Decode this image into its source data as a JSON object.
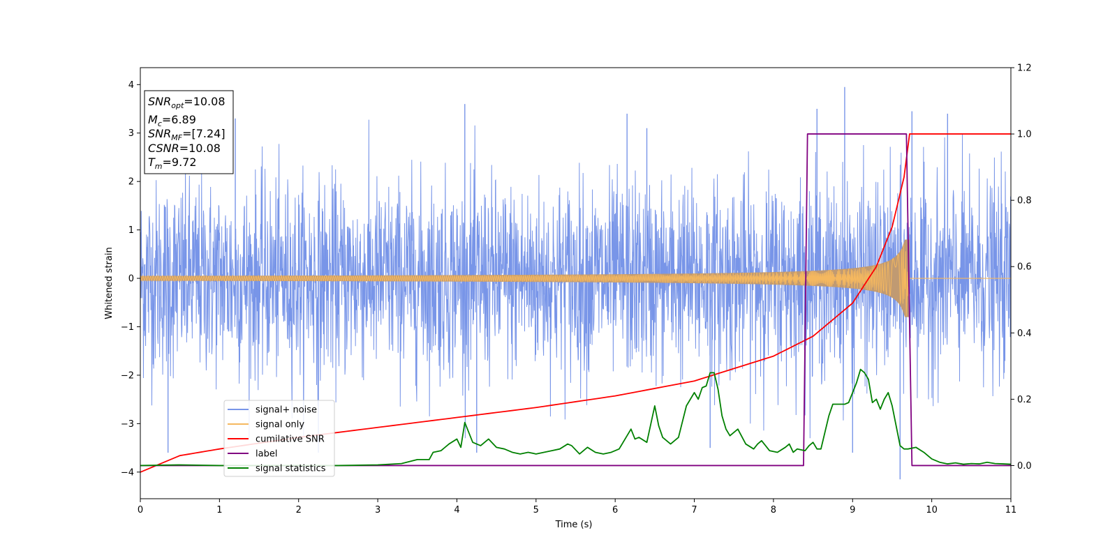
{
  "chart_data": {
    "type": "line",
    "xlabel": "Time (s)",
    "ylabel": "Whitened strain",
    "xlim": [
      0,
      11
    ],
    "ylim": [
      -4.55,
      4.35
    ],
    "ylim_right": [
      -0.1,
      1.2
    ],
    "xticks": [
      "0",
      "1",
      "2",
      "3",
      "4",
      "5",
      "6",
      "7",
      "8",
      "9",
      "10",
      "11"
    ],
    "yticks": [
      "4",
      "3",
      "2",
      "1",
      "0",
      "−1",
      "−2",
      "−3",
      "−4"
    ],
    "yticks_right": [
      "1.2",
      "1.0",
      "0.8",
      "0.6",
      "0.4",
      "0.2",
      "0.0"
    ],
    "grid": false,
    "legend_position": "lower-left",
    "annotation": {
      "lines": [
        {
          "main": "SNR",
          "sub": "opt",
          "value": "=10.08"
        },
        {
          "main": "M",
          "sub": "c",
          "value": "=6.89"
        },
        {
          "main": "SNR",
          "sub": "MF",
          "value": "=[7.24]"
        },
        {
          "main": "CSNR",
          "sub": "",
          "value": "=10.08"
        },
        {
          "main": "T",
          "sub": "m",
          "value": "=9.72"
        }
      ]
    },
    "series": [
      {
        "name": "signal+ noise",
        "axis": "left",
        "color": "#7895e8",
        "kind": "noise",
        "noise_sigma": 1.0,
        "spike_peaks": [
          [
            0.35,
            -3.6
          ],
          [
            1.2,
            3.3
          ],
          [
            2.25,
            -3.6
          ],
          [
            4.1,
            3.6
          ],
          [
            4.25,
            -3.6
          ],
          [
            6.15,
            3.4
          ],
          [
            6.4,
            3.1
          ],
          [
            7.2,
            -3.5
          ],
          [
            8.55,
            3.5
          ],
          [
            8.9,
            3.95
          ],
          [
            9.0,
            -3.6
          ],
          [
            9.6,
            -4.15
          ],
          [
            9.75,
            3.45
          ],
          [
            10.2,
            3.4
          ]
        ]
      },
      {
        "name": "signal only",
        "axis": "left",
        "color": "#f5b85f",
        "fill": "#c09a72",
        "kind": "chirp",
        "merger_time": 9.72,
        "end_time": 9.72,
        "amplitude_start": 0.05,
        "amplitude_peak": 0.8
      },
      {
        "name": "cumilative SNR",
        "axis": "right",
        "color": "#ff0000",
        "kind": "cumulative",
        "x": [
          0,
          0.5,
          1,
          2,
          3,
          4,
          5,
          6,
          7,
          8,
          8.5,
          9,
          9.3,
          9.5,
          9.65,
          9.72,
          11
        ],
        "y": [
          -0.02,
          0.03,
          0.05,
          0.085,
          0.115,
          0.145,
          0.175,
          0.21,
          0.255,
          0.33,
          0.39,
          0.49,
          0.6,
          0.72,
          0.87,
          1.0,
          1.0
        ]
      },
      {
        "name": "label",
        "axis": "right",
        "color": "#800080",
        "kind": "step",
        "x": [
          0,
          8.38,
          8.43,
          9.68,
          9.75,
          11
        ],
        "y": [
          0,
          0,
          1,
          1,
          0,
          0
        ]
      },
      {
        "name": "signal statistics",
        "axis": "right",
        "color": "#008000",
        "kind": "line",
        "x": [
          0,
          0.5,
          1,
          1.5,
          2,
          2.5,
          3,
          3.3,
          3.5,
          3.65,
          3.7,
          3.8,
          3.9,
          4.0,
          4.05,
          4.1,
          4.2,
          4.3,
          4.4,
          4.5,
          4.6,
          4.7,
          4.8,
          4.9,
          5.0,
          5.1,
          5.2,
          5.3,
          5.4,
          5.45,
          5.55,
          5.65,
          5.75,
          5.85,
          5.95,
          6.05,
          6.15,
          6.2,
          6.25,
          6.3,
          6.4,
          6.5,
          6.55,
          6.6,
          6.7,
          6.8,
          6.9,
          7.0,
          7.05,
          7.1,
          7.15,
          7.2,
          7.25,
          7.3,
          7.35,
          7.4,
          7.45,
          7.55,
          7.65,
          7.75,
          7.8,
          7.85,
          7.95,
          8.05,
          8.15,
          8.2,
          8.25,
          8.3,
          8.4,
          8.45,
          8.5,
          8.55,
          8.6,
          8.7,
          8.75,
          8.8,
          8.9,
          8.95,
          9.0,
          9.05,
          9.1,
          9.15,
          9.2,
          9.25,
          9.3,
          9.35,
          9.4,
          9.45,
          9.5,
          9.55,
          9.6,
          9.65,
          9.7,
          9.8,
          9.9,
          10.0,
          10.1,
          10.2,
          10.3,
          10.4,
          10.5,
          10.6,
          10.7,
          10.8,
          10.9,
          11.0
        ],
        "y": [
          0.0,
          0.002,
          0.0,
          0.0,
          0.0,
          0.0,
          0.002,
          0.006,
          0.018,
          0.018,
          0.04,
          0.045,
          0.065,
          0.08,
          0.055,
          0.13,
          0.07,
          0.06,
          0.08,
          0.055,
          0.05,
          0.04,
          0.035,
          0.04,
          0.035,
          0.04,
          0.045,
          0.05,
          0.065,
          0.06,
          0.035,
          0.055,
          0.04,
          0.035,
          0.04,
          0.05,
          0.09,
          0.11,
          0.08,
          0.085,
          0.07,
          0.18,
          0.12,
          0.085,
          0.065,
          0.085,
          0.18,
          0.22,
          0.2,
          0.235,
          0.24,
          0.28,
          0.28,
          0.23,
          0.15,
          0.11,
          0.09,
          0.11,
          0.065,
          0.05,
          0.065,
          0.075,
          0.045,
          0.04,
          0.055,
          0.065,
          0.04,
          0.05,
          0.045,
          0.06,
          0.07,
          0.05,
          0.05,
          0.15,
          0.185,
          0.185,
          0.185,
          0.19,
          0.22,
          0.25,
          0.29,
          0.28,
          0.26,
          0.19,
          0.2,
          0.17,
          0.2,
          0.22,
          0.18,
          0.12,
          0.06,
          0.05,
          0.05,
          0.055,
          0.04,
          0.02,
          0.01,
          0.005,
          0.008,
          0.004,
          0.006,
          0.005,
          0.01,
          0.006,
          0.005,
          0.004
        ]
      }
    ]
  }
}
